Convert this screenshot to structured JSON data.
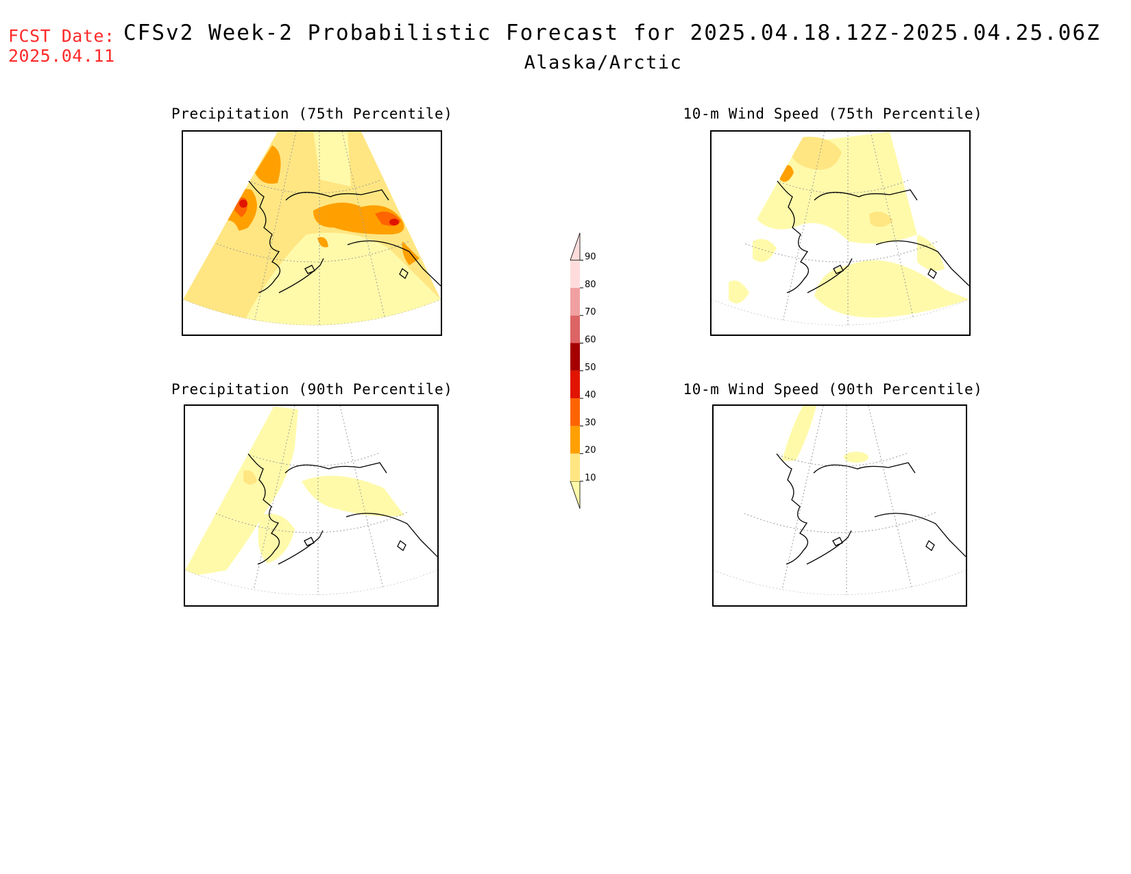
{
  "header": {
    "fcst_label": "FCST Date:",
    "fcst_date": "2025.04.11",
    "title": "CFSv2 Week-2 Probabilistic Forecast for 2025.04.18.12Z-2025.04.25.06Z",
    "subtitle": "Alaska/Arctic"
  },
  "panels": [
    {
      "title": "Precipitation (75th Percentile)"
    },
    {
      "title": "10-m Wind Speed (75th Percentile)"
    },
    {
      "title": "Precipitation (90th Percentile)"
    },
    {
      "title": "10-m Wind Speed (90th Percentile)"
    }
  ],
  "legend": {
    "levels": [
      "10",
      "20",
      "30",
      "40",
      "50",
      "60",
      "70",
      "80",
      "90"
    ],
    "colors": [
      "#fffaaa",
      "#ffe682",
      "#ffa000",
      "#ff6400",
      "#e11400",
      "#a50000",
      "#dc6464",
      "#f0a0a0",
      "#ffdcdc"
    ]
  }
}
